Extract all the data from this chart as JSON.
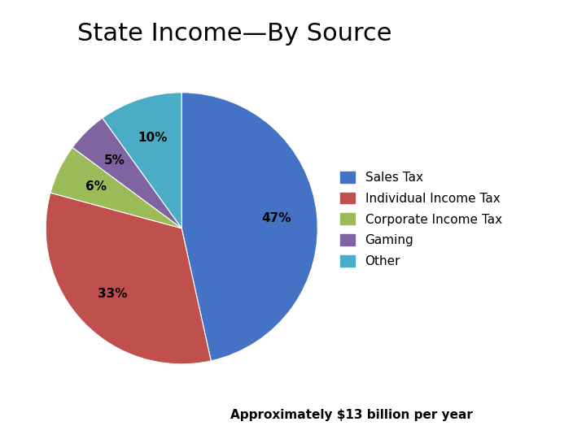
{
  "title": "State Income—By Source",
  "subtitle": "Approximately $13 billion per year",
  "labels": [
    "Sales Tax",
    "Individual Income Tax",
    "Corporate Income Tax",
    "Gaming",
    "Other"
  ],
  "values": [
    47,
    33,
    6,
    5,
    10
  ],
  "colors": [
    "#4472C4",
    "#C0504D",
    "#9BBB59",
    "#8064A2",
    "#4BACC6"
  ],
  "startangle": 90,
  "title_fontsize": 22,
  "legend_fontsize": 11,
  "pct_fontsize": 11,
  "subtitle_fontsize": 11,
  "background_color": "#FFFFFF"
}
